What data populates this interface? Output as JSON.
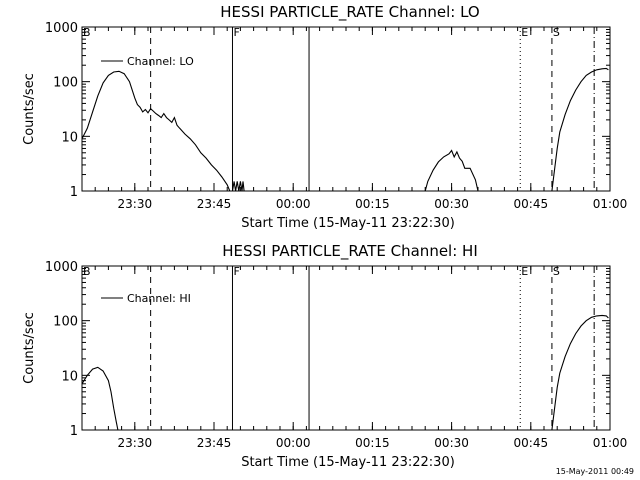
{
  "footer": {
    "timestamp": "15-May-2011 00:49"
  },
  "chart_data": [
    {
      "type": "line",
      "title": "HESSI PARTICLE_RATE Channel: LO",
      "xlabel": "Start Time (15-May-11 23:22:30)",
      "ylabel": "Counts/sec",
      "y_scale": "log",
      "ylim": [
        1,
        1000
      ],
      "xlim": [
        -2.5,
        97.5
      ],
      "xticks": [
        {
          "at": 7.5,
          "label": "23:30"
        },
        {
          "at": 22.5,
          "label": "23:45"
        },
        {
          "at": 37.5,
          "label": "00:00"
        },
        {
          "at": 52.5,
          "label": "00:15"
        },
        {
          "at": 67.5,
          "label": "00:30"
        },
        {
          "at": 82.5,
          "label": "00:45"
        },
        {
          "at": 97.5,
          "label": "01:00"
        }
      ],
      "yticks": [
        {
          "at": 1,
          "label": "1"
        },
        {
          "at": 10,
          "label": "10"
        },
        {
          "at": 100,
          "label": "100"
        },
        {
          "at": 1000,
          "label": "1000"
        }
      ],
      "legend": {
        "label": "Channel: LO",
        "placement": "top-left"
      },
      "markers": [
        {
          "at": -2.5,
          "label": "B",
          "style": "dashed"
        },
        {
          "at": 10.5,
          "label": "",
          "style": "dashed"
        },
        {
          "at": 26.0,
          "label": "F",
          "style": "solid"
        },
        {
          "at": 40.5,
          "label": "",
          "style": "solid"
        },
        {
          "at": 80.5,
          "label": "E",
          "style": "dotted"
        },
        {
          "at": 86.5,
          "label": "S",
          "style": "dashed"
        },
        {
          "at": 94.5,
          "label": "",
          "style": "dashdot"
        }
      ],
      "series": [
        {
          "name": "Channel: LO",
          "segments": [
            [
              [
                -2.5,
                9
              ],
              [
                -1.5,
                14
              ],
              [
                -0.5,
                28
              ],
              [
                0.5,
                55
              ],
              [
                1.5,
                95
              ],
              [
                2.5,
                130
              ],
              [
                3.5,
                150
              ],
              [
                4.5,
                155
              ],
              [
                5.5,
                140
              ],
              [
                6.5,
                100
              ],
              [
                7.5,
                50
              ],
              [
                8.0,
                38
              ],
              [
                8.5,
                34
              ],
              [
                9.0,
                28
              ],
              [
                9.5,
                31
              ],
              [
                10.0,
                27
              ],
              [
                10.5,
                32
              ],
              [
                11.0,
                29
              ],
              [
                11.5,
                26
              ],
              [
                12.0,
                24
              ],
              [
                12.5,
                22
              ],
              [
                13.0,
                26
              ],
              [
                13.5,
                22
              ],
              [
                14.0,
                20
              ],
              [
                14.5,
                18
              ],
              [
                15.0,
                22
              ],
              [
                15.5,
                16
              ],
              [
                16.0,
                14
              ],
              [
                17.0,
                11
              ],
              [
                18.0,
                9
              ],
              [
                19.0,
                7
              ],
              [
                20.0,
                5
              ],
              [
                21.0,
                4
              ],
              [
                22.0,
                3
              ],
              [
                23.0,
                2.4
              ],
              [
                24.0,
                1.8
              ],
              [
                25.0,
                1.3
              ],
              [
                25.5,
                1.0
              ]
            ],
            [
              [
                26.0,
                1.0
              ],
              [
                26.3,
                1.5
              ],
              [
                26.6,
                1.0
              ],
              [
                26.9,
                1.5
              ],
              [
                27.2,
                1.0
              ],
              [
                27.5,
                1.5
              ],
              [
                27.8,
                1.0
              ],
              [
                28.0,
                1.5
              ],
              [
                28.2,
                1.0
              ]
            ],
            [
              [
                62.5,
                1.0
              ],
              [
                63.0,
                1.5
              ],
              [
                64.0,
                2.4
              ],
              [
                65.0,
                3.4
              ],
              [
                66.0,
                4.2
              ],
              [
                67.0,
                4.8
              ],
              [
                67.5,
                5.5
              ],
              [
                68.0,
                4.2
              ],
              [
                68.5,
                5.2
              ],
              [
                69.0,
                4.0
              ],
              [
                69.5,
                3.5
              ],
              [
                70.0,
                2.6
              ],
              [
                71.0,
                2.6
              ],
              [
                72.0,
                1.6
              ],
              [
                72.5,
                1.0
              ]
            ],
            [
              [
                86.5,
                1.0
              ],
              [
                87.0,
                2.5
              ],
              [
                87.5,
                6
              ],
              [
                88.0,
                12
              ],
              [
                89.0,
                25
              ],
              [
                90.0,
                45
              ],
              [
                91.0,
                70
              ],
              [
                92.0,
                100
              ],
              [
                93.0,
                130
              ],
              [
                94.0,
                150
              ],
              [
                95.0,
                165
              ],
              [
                96.0,
                172
              ],
              [
                96.8,
                175
              ],
              [
                97.2,
                165
              ]
            ]
          ]
        }
      ]
    },
    {
      "type": "line",
      "title": "HESSI PARTICLE_RATE Channel: HI",
      "xlabel": "Start Time (15-May-11 23:22:30)",
      "ylabel": "Counts/sec",
      "y_scale": "log",
      "ylim": [
        1,
        1000
      ],
      "xlim": [
        -2.5,
        97.5
      ],
      "xticks": [
        {
          "at": 7.5,
          "label": "23:30"
        },
        {
          "at": 22.5,
          "label": "23:45"
        },
        {
          "at": 37.5,
          "label": "00:00"
        },
        {
          "at": 52.5,
          "label": "00:15"
        },
        {
          "at": 67.5,
          "label": "00:30"
        },
        {
          "at": 82.5,
          "label": "00:45"
        },
        {
          "at": 97.5,
          "label": "01:00"
        }
      ],
      "yticks": [
        {
          "at": 1,
          "label": "1"
        },
        {
          "at": 10,
          "label": "10"
        },
        {
          "at": 100,
          "label": "100"
        },
        {
          "at": 1000,
          "label": "1000"
        }
      ],
      "legend": {
        "label": "Channel: HI",
        "placement": "top-left"
      },
      "markers": [
        {
          "at": -2.5,
          "label": "B",
          "style": "dashed"
        },
        {
          "at": 10.5,
          "label": "",
          "style": "dashed"
        },
        {
          "at": 26.0,
          "label": "F",
          "style": "solid"
        },
        {
          "at": 40.5,
          "label": "",
          "style": "solid"
        },
        {
          "at": 80.5,
          "label": "E",
          "style": "dotted"
        },
        {
          "at": 86.5,
          "label": "S",
          "style": "dashed"
        },
        {
          "at": 94.5,
          "label": "",
          "style": "dashdot"
        }
      ],
      "series": [
        {
          "name": "Channel: HI",
          "segments": [
            [
              [
                -2.5,
                7
              ],
              [
                -1.5,
                10
              ],
              [
                -0.5,
                13
              ],
              [
                0.5,
                14
              ],
              [
                1.5,
                12
              ],
              [
                2.5,
                8
              ],
              [
                3.0,
                5
              ],
              [
                3.5,
                2.5
              ],
              [
                4.0,
                1.4
              ],
              [
                4.3,
                1.0
              ]
            ],
            [
              [
                86.5,
                1.0
              ],
              [
                87.0,
                2.5
              ],
              [
                87.5,
                6
              ],
              [
                88.0,
                11
              ],
              [
                89.0,
                22
              ],
              [
                90.0,
                38
              ],
              [
                91.0,
                58
              ],
              [
                92.0,
                80
              ],
              [
                93.0,
                100
              ],
              [
                94.0,
                115
              ],
              [
                95.0,
                122
              ],
              [
                96.0,
                125
              ],
              [
                96.8,
                122
              ],
              [
                97.2,
                112
              ]
            ]
          ]
        }
      ]
    }
  ]
}
